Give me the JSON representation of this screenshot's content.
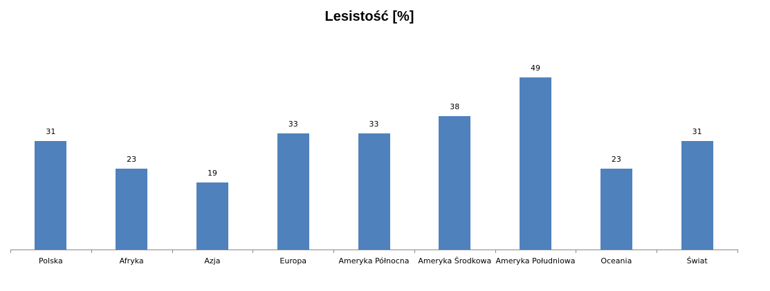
{
  "chart_data": {
    "type": "bar",
    "title": "Lesistość [%]",
    "xlabel": "",
    "ylabel": "",
    "categories": [
      "Polska",
      "Afryka",
      "Azja",
      "Europa",
      "Ameryka Północna",
      "Ameryka Środkowa",
      "Ameryka Południowa",
      "Oceania",
      "Świat"
    ],
    "values": [
      31,
      23,
      19,
      33,
      33,
      38,
      49,
      23,
      31
    ],
    "ylim": [
      0,
      50
    ],
    "grid": false,
    "legend": null,
    "data_labels": true,
    "bar_color": "#4f81bd"
  }
}
